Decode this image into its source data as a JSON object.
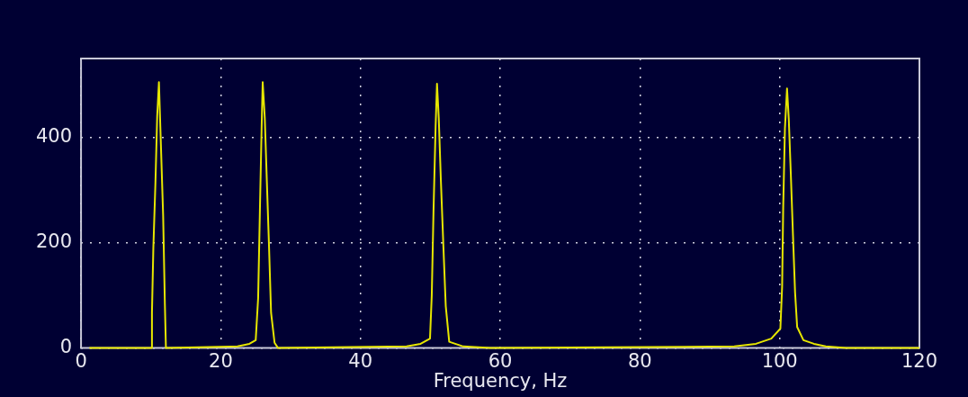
{
  "chart_data": {
    "type": "line",
    "xlabel": "Frequency, Hz",
    "x": [
      1.2,
      10.05,
      10.15,
      10.35,
      10.65,
      10.9,
      11.15,
      11.35,
      11.75,
      12.0,
      12.15,
      22.4,
      24.1,
      25.0,
      25.35,
      25.6,
      25.85,
      26.0,
      26.3,
      26.6,
      26.9,
      27.2,
      27.7,
      28.2,
      46.6,
      48.6,
      49.95,
      50.2,
      50.45,
      50.75,
      50.95,
      51.2,
      51.5,
      51.85,
      52.2,
      52.7,
      54.7,
      58.6,
      93.5,
      96.6,
      98.8,
      100.1,
      100.35,
      100.5,
      100.75,
      101.05,
      101.3,
      101.6,
      101.9,
      102.2,
      102.5,
      103.4,
      104.9,
      106.6,
      109.5,
      120
    ],
    "series": [
      {
        "color": "#e6e600",
        "values": [
          0,
          0,
          67,
          190,
          315,
          440,
          505,
          420,
          252,
          83,
          0,
          3,
          8,
          15,
          95,
          260,
          420,
          505,
          437,
          315,
          196,
          67,
          10,
          0,
          3,
          8,
          18,
          100,
          260,
          420,
          502,
          437,
          320,
          198,
          80,
          12,
          3,
          0,
          3,
          8,
          18,
          37,
          117,
          265,
          417,
          493,
          435,
          328,
          215,
          106,
          40,
          15,
          8,
          3,
          0,
          0
        ]
      }
    ],
    "xlim": [
      0,
      120
    ],
    "xticks": [
      0,
      20,
      40,
      60,
      80,
      100,
      120
    ],
    "ylim": [
      0,
      550
    ],
    "yticks": [
      0,
      200,
      400
    ],
    "grid": true,
    "marker": "none",
    "line_style": "solid"
  }
}
